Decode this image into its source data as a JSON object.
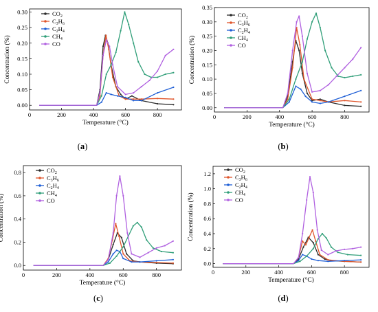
{
  "figure": {
    "colors": {
      "CO2": "#2b2b2b",
      "C3H6": "#e0552b",
      "C2H4": "#1f5fd6",
      "CH4": "#2f9e78",
      "CO": "#b060e0"
    }
  },
  "chart_data": [
    {
      "panel": "(a)",
      "panel_letter": "a",
      "type": "line",
      "xlabel": "Temperature (°C)",
      "ylabel": "Concentration (%)",
      "xlim": [
        0,
        950
      ],
      "ylim": [
        -0.015,
        0.31
      ],
      "xticks": [
        0,
        200,
        400,
        600,
        800
      ],
      "yticks": [
        0.0,
        0.05,
        0.1,
        0.15,
        0.2,
        0.25,
        0.3
      ],
      "ytick_labels": [
        "0.00",
        "0.05",
        "0.10",
        "0.15",
        "0.20",
        "0.25",
        "0.30"
      ],
      "legend_position": "top-left",
      "series": [
        {
          "name": "CO2",
          "key": "CO2",
          "label_base": "CO",
          "label_sub": "2",
          "x": [
            60,
            420,
            440,
            460,
            475,
            490,
            510,
            540,
            570,
            600,
            640,
            700,
            800,
            900
          ],
          "y": [
            0,
            0,
            0.05,
            0.19,
            0.225,
            0.2,
            0.13,
            0.06,
            0.035,
            0.02,
            0.03,
            0.015,
            0.005,
            0.002
          ]
        },
        {
          "name": "C3H6",
          "key": "C3H6",
          "label_base": "C",
          "label_sub": "3",
          "label_base2": "H",
          "label_sub2": "6",
          "x": [
            60,
            420,
            440,
            460,
            478,
            495,
            520,
            560,
            600,
            650,
            700,
            800,
            900
          ],
          "y": [
            0,
            0,
            0.03,
            0.16,
            0.225,
            0.18,
            0.09,
            0.03,
            0.02,
            0.02,
            0.02,
            0.022,
            0.02
          ]
        },
        {
          "name": "C2H4",
          "key": "C2H4",
          "label_base": "C",
          "label_sub": "2",
          "label_base2": "H",
          "label_sub2": "4",
          "x": [
            60,
            420,
            450,
            480,
            510,
            550,
            600,
            650,
            700,
            800,
            900
          ],
          "y": [
            0,
            0,
            0.01,
            0.04,
            0.035,
            0.03,
            0.025,
            0.015,
            0.015,
            0.04,
            0.058
          ]
        },
        {
          "name": "CH4",
          "key": "CH4",
          "label_base": "CH",
          "label_sub": "4",
          "x": [
            60,
            420,
            450,
            480,
            510,
            540,
            570,
            595,
            620,
            650,
            680,
            720,
            760,
            800,
            850,
            900
          ],
          "y": [
            0,
            0,
            0.03,
            0.1,
            0.13,
            0.17,
            0.24,
            0.3,
            0.26,
            0.2,
            0.14,
            0.1,
            0.09,
            0.09,
            0.1,
            0.105
          ]
        },
        {
          "name": "CO",
          "key": "CO",
          "label_base": "CO",
          "x": [
            60,
            420,
            440,
            460,
            480,
            500,
            520,
            550,
            600,
            650,
            700,
            750,
            800,
            850,
            900
          ],
          "y": [
            0,
            0,
            0.04,
            0.16,
            0.21,
            0.19,
            0.13,
            0.06,
            0.035,
            0.04,
            0.06,
            0.08,
            0.11,
            0.16,
            0.18
          ]
        }
      ]
    },
    {
      "panel": "(b)",
      "panel_letter": "b",
      "type": "line",
      "xlabel": "Temperature (°C)",
      "ylabel": "Concentration (%)",
      "xlim": [
        0,
        950
      ],
      "ylim": [
        -0.015,
        0.35
      ],
      "xticks": [
        0,
        200,
        400,
        600,
        800
      ],
      "yticks": [
        0.0,
        0.05,
        0.1,
        0.15,
        0.2,
        0.25,
        0.3,
        0.35
      ],
      "ytick_labels": [
        "0.00",
        "0.05",
        "0.10",
        "0.15",
        "0.20",
        "0.25",
        "0.30",
        "0.35"
      ],
      "legend_position": "top-left",
      "series": [
        {
          "name": "CO2",
          "key": "CO2",
          "label_base": "CO",
          "label_sub": "2",
          "x": [
            60,
            420,
            450,
            480,
            500,
            520,
            540,
            570,
            600,
            650,
            700,
            800,
            900
          ],
          "y": [
            0,
            0,
            0.04,
            0.16,
            0.235,
            0.2,
            0.12,
            0.05,
            0.025,
            0.03,
            0.02,
            0.008,
            0.005
          ]
        },
        {
          "name": "C3H6",
          "key": "C3H6",
          "label_base": "C",
          "label_sub": "3",
          "label_base2": "H",
          "label_sub2": "6",
          "x": [
            60,
            420,
            450,
            480,
            505,
            525,
            550,
            600,
            650,
            700,
            800,
            900
          ],
          "y": [
            0,
            0,
            0.03,
            0.14,
            0.28,
            0.22,
            0.1,
            0.03,
            0.025,
            0.02,
            0.025,
            0.02
          ]
        },
        {
          "name": "C2H4",
          "key": "C2H4",
          "label_base": "C",
          "label_sub": "2",
          "label_base2": "H",
          "label_sub2": "4",
          "x": [
            60,
            420,
            460,
            500,
            530,
            560,
            600,
            650,
            700,
            800,
            900
          ],
          "y": [
            0,
            0,
            0.02,
            0.075,
            0.065,
            0.04,
            0.02,
            0.015,
            0.02,
            0.04,
            0.06
          ]
        },
        {
          "name": "CH4",
          "key": "CH4",
          "label_base": "CH",
          "label_sub": "4",
          "x": [
            60,
            420,
            460,
            500,
            540,
            570,
            600,
            625,
            650,
            680,
            720,
            760,
            800,
            850,
            900
          ],
          "y": [
            0,
            0,
            0.03,
            0.1,
            0.16,
            0.24,
            0.3,
            0.33,
            0.28,
            0.2,
            0.14,
            0.11,
            0.105,
            0.11,
            0.115
          ]
        },
        {
          "name": "CO",
          "key": "CO",
          "label_base": "CO",
          "x": [
            60,
            420,
            450,
            480,
            505,
            520,
            540,
            570,
            600,
            650,
            700,
            750,
            800,
            850,
            900
          ],
          "y": [
            0,
            0,
            0.05,
            0.2,
            0.3,
            0.32,
            0.25,
            0.12,
            0.055,
            0.06,
            0.08,
            0.11,
            0.14,
            0.17,
            0.21
          ]
        }
      ]
    },
    {
      "panel": "(c)",
      "panel_letter": "c",
      "type": "line",
      "xlabel": "Temperature (°C)",
      "ylabel": "Concentration (%)",
      "xlim": [
        0,
        950
      ],
      "ylim": [
        -0.04,
        0.86
      ],
      "xticks": [
        0,
        200,
        400,
        600,
        800
      ],
      "yticks": [
        0.0,
        0.2,
        0.4,
        0.6,
        0.8
      ],
      "ytick_labels": [
        "0.0",
        "0.2",
        "0.4",
        "0.6",
        "0.8"
      ],
      "legend_position": "top-left",
      "series": [
        {
          "name": "CO2",
          "key": "CO2",
          "label_base": "CO",
          "label_sub": "2",
          "x": [
            60,
            480,
            510,
            540,
            565,
            590,
            620,
            660,
            700,
            800,
            900
          ],
          "y": [
            0,
            0,
            0.05,
            0.18,
            0.28,
            0.24,
            0.1,
            0.04,
            0.03,
            0.02,
            0.015
          ]
        },
        {
          "name": "C3H6",
          "key": "C3H6",
          "label_base": "C",
          "label_sub": "3",
          "label_base2": "H",
          "label_sub2": "6",
          "x": [
            60,
            480,
            510,
            535,
            555,
            575,
            600,
            640,
            700,
            800,
            900
          ],
          "y": [
            0,
            0,
            0.06,
            0.22,
            0.36,
            0.25,
            0.1,
            0.04,
            0.03,
            0.025,
            0.02
          ]
        },
        {
          "name": "C2H4",
          "key": "C2H4",
          "label_base": "C",
          "label_sub": "2",
          "label_base2": "H",
          "label_sub2": "4",
          "x": [
            60,
            480,
            510,
            540,
            560,
            580,
            600,
            650,
            700,
            800,
            900
          ],
          "y": [
            0,
            0,
            0.03,
            0.1,
            0.13,
            0.12,
            0.06,
            0.03,
            0.03,
            0.04,
            0.05
          ]
        },
        {
          "name": "CH4",
          "key": "CH4",
          "label_base": "CH",
          "label_sub": "4",
          "x": [
            60,
            480,
            520,
            560,
            600,
            630,
            660,
            685,
            710,
            740,
            780,
            830,
            900
          ],
          "y": [
            0,
            0,
            0.02,
            0.08,
            0.16,
            0.25,
            0.34,
            0.37,
            0.33,
            0.22,
            0.15,
            0.12,
            0.11
          ]
        },
        {
          "name": "CO",
          "key": "CO",
          "label_base": "CO",
          "x": [
            60,
            480,
            510,
            540,
            560,
            580,
            600,
            625,
            650,
            700,
            750,
            800,
            850,
            900
          ],
          "y": [
            0,
            0,
            0.05,
            0.28,
            0.6,
            0.77,
            0.6,
            0.28,
            0.1,
            0.07,
            0.11,
            0.15,
            0.17,
            0.21
          ]
        }
      ]
    },
    {
      "panel": "(d)",
      "panel_letter": "d",
      "type": "line",
      "xlabel": "Temperature (°C)",
      "ylabel": "Concentration (%)",
      "xlim": [
        0,
        950
      ],
      "ylim": [
        -0.05,
        1.3
      ],
      "xticks": [
        0,
        200,
        400,
        600,
        800
      ],
      "yticks": [
        0.0,
        0.2,
        0.4,
        0.6,
        0.8,
        1.0,
        1.2
      ],
      "ytick_labels": [
        "0.0",
        "0.2",
        "0.4",
        "0.6",
        "0.8",
        "1.0",
        "1.2"
      ],
      "legend_position": "top-left",
      "series": [
        {
          "name": "CO2",
          "key": "CO2",
          "label_base": "CO",
          "label_sub": "2",
          "x": [
            60,
            490,
            520,
            550,
            580,
            610,
            640,
            680,
            720,
            800,
            900
          ],
          "y": [
            0,
            0,
            0.06,
            0.22,
            0.35,
            0.28,
            0.12,
            0.06,
            0.04,
            0.03,
            0.02
          ]
        },
        {
          "name": "C3H6",
          "key": "C3H6",
          "label_base": "C",
          "label_sub": "3",
          "label_base2": "H",
          "label_sub2": "6",
          "x": [
            60,
            490,
            520,
            545,
            565,
            585,
            605,
            625,
            650,
            700,
            800,
            900
          ],
          "y": [
            0,
            0,
            0.08,
            0.3,
            0.25,
            0.35,
            0.45,
            0.3,
            0.12,
            0.05,
            0.03,
            0.02
          ]
        },
        {
          "name": "C2H4",
          "key": "C2H4",
          "label_base": "C",
          "label_sub": "2",
          "label_base2": "H",
          "label_sub2": "4",
          "x": [
            60,
            490,
            520,
            545,
            570,
            600,
            640,
            700,
            800,
            900
          ],
          "y": [
            0,
            0,
            0.04,
            0.12,
            0.1,
            0.06,
            0.04,
            0.03,
            0.04,
            0.05
          ]
        },
        {
          "name": "CH4",
          "key": "CH4",
          "label_base": "CH",
          "label_sub": "4",
          "x": [
            60,
            490,
            530,
            570,
            610,
            640,
            665,
            690,
            720,
            760,
            820,
            900
          ],
          "y": [
            0,
            0,
            0.03,
            0.1,
            0.2,
            0.33,
            0.4,
            0.34,
            0.22,
            0.15,
            0.12,
            0.11
          ]
        },
        {
          "name": "CO",
          "key": "CO",
          "label_base": "CO",
          "x": [
            60,
            490,
            520,
            545,
            570,
            590,
            610,
            635,
            660,
            700,
            750,
            800,
            850,
            900
          ],
          "y": [
            0,
            0,
            0.08,
            0.4,
            0.85,
            1.16,
            0.95,
            0.45,
            0.18,
            0.12,
            0.17,
            0.19,
            0.2,
            0.22
          ]
        }
      ]
    }
  ]
}
